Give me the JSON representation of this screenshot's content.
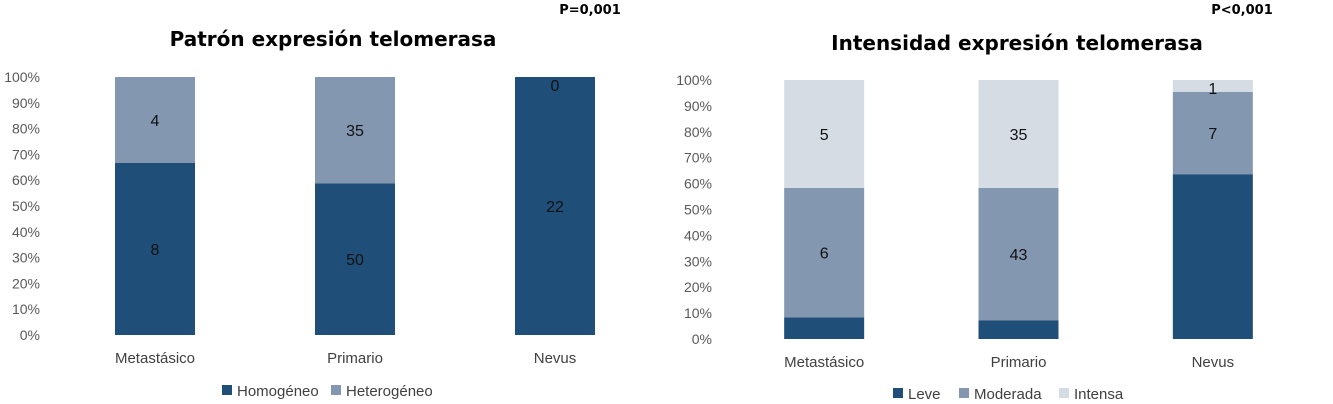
{
  "charts": [
    {
      "type": "bar",
      "stacked": true,
      "percent_scale": true,
      "title": "Patrón expresión telomerasa",
      "p_value": "P=0,001",
      "categories": [
        "Metastásico",
        "Primario",
        "Nevus"
      ],
      "series": [
        {
          "name": "Homogéneo",
          "values": [
            8,
            50,
            22
          ],
          "color": "#1f4e79"
        },
        {
          "name": "Heterogéneo",
          "values": [
            4,
            35,
            0
          ],
          "color": "#8497b0"
        }
      ],
      "y_ticks": [
        "0%",
        "10%",
        "20%",
        "30%",
        "40%",
        "50%",
        "60%",
        "70%",
        "80%",
        "90%",
        "100%"
      ],
      "ylim": [
        0,
        100
      ],
      "legend_position": "bottom"
    },
    {
      "type": "bar",
      "stacked": true,
      "percent_scale": true,
      "title": "Intensidad expresión telomerasa",
      "p_value": "P<0,001",
      "categories": [
        "Metastásico",
        "Primario",
        "Nevus"
      ],
      "series": [
        {
          "name": "Leve",
          "values": [
            1,
            6,
            14
          ],
          "value_labels": [
            "",
            "",
            ""
          ],
          "color": "#1f4e79"
        },
        {
          "name": "Moderada",
          "values": [
            6,
            43,
            7
          ],
          "value_labels": [
            "6",
            "43",
            "7"
          ],
          "color": "#8497b0"
        },
        {
          "name": "Intensa",
          "values": [
            5,
            35,
            1
          ],
          "value_labels": [
            "5",
            "35",
            "1"
          ],
          "color": "#d6dce4"
        }
      ],
      "y_ticks": [
        "0%",
        "10%",
        "20%",
        "30%",
        "40%",
        "50%",
        "60%",
        "70%",
        "80%",
        "90%",
        "100%"
      ],
      "ylim": [
        0,
        100
      ],
      "legend_position": "bottom"
    }
  ]
}
